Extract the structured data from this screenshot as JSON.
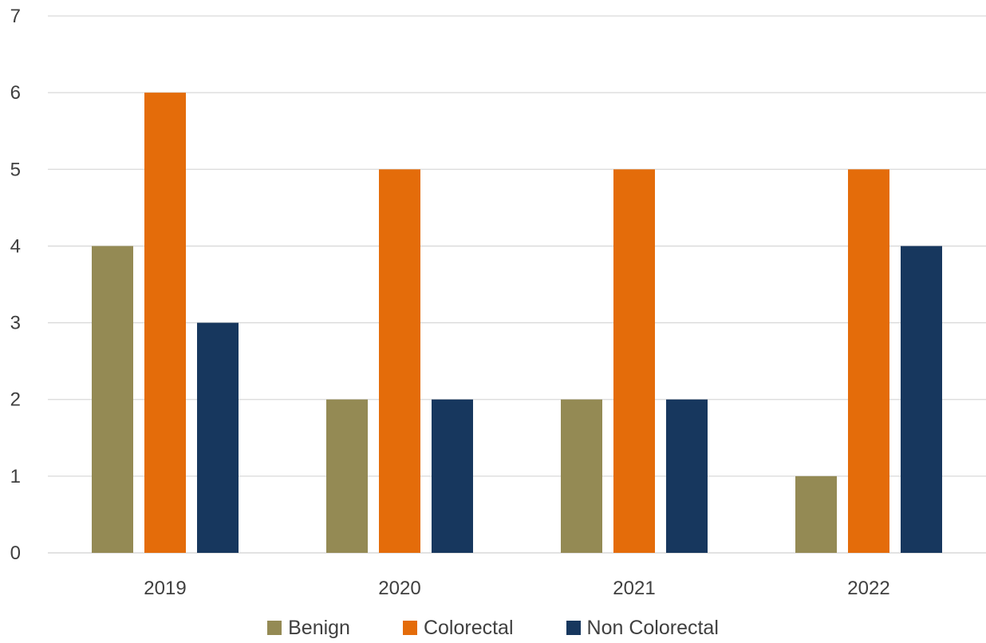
{
  "chart_data": {
    "type": "bar",
    "categories": [
      "2019",
      "2020",
      "2021",
      "2022"
    ],
    "series": [
      {
        "name": "Benign",
        "values": [
          4,
          2,
          2,
          1
        ],
        "color": "#948A54"
      },
      {
        "name": "Colorectal",
        "values": [
          6,
          5,
          5,
          5
        ],
        "color": "#E46C0A"
      },
      {
        "name": "Non Colorectal",
        "values": [
          3,
          2,
          2,
          4
        ],
        "color": "#17375E"
      }
    ],
    "ylim": [
      0,
      7
    ],
    "yticks": [
      "0",
      "1",
      "2",
      "3",
      "4",
      "5",
      "6",
      "7"
    ],
    "grid": true,
    "legend_position": "bottom",
    "title": "",
    "xlabel": "",
    "ylabel": ""
  }
}
